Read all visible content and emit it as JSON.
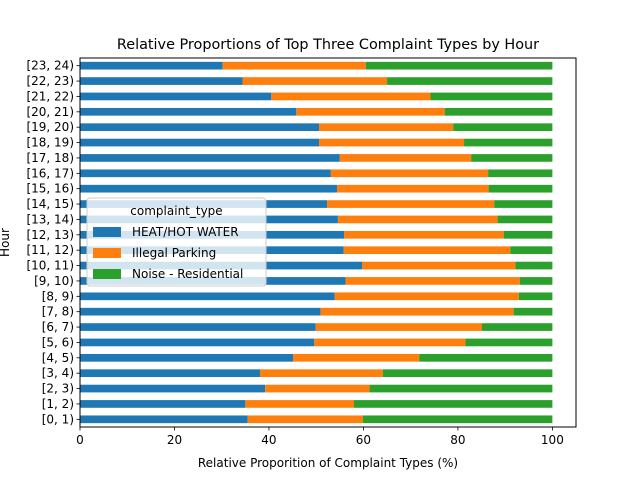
{
  "chart_data": {
    "type": "bar",
    "orientation": "horizontal",
    "stacked": true,
    "title": "Relative Proportions of Top Three Complaint Types by Hour",
    "xlabel": "Relative Proporition of Complaint Types (%)",
    "ylabel": "Hour",
    "xlim": [
      0,
      105
    ],
    "xticks": [
      0,
      20,
      40,
      60,
      80,
      100
    ],
    "grid": false,
    "categories": [
      "[0, 1)",
      "[1, 2)",
      "[2, 3)",
      "[3, 4)",
      "[4, 5)",
      "[5, 6)",
      "[6, 7)",
      "[7, 8)",
      "[8, 9)",
      "[9, 10)",
      "[10, 11)",
      "[11, 12)",
      "[12, 13)",
      "[13, 14)",
      "[14, 15)",
      "[15, 16)",
      "[16, 17)",
      "[17, 18)",
      "[18, 19)",
      "[19, 20)",
      "[20, 21)",
      "[21, 22)",
      "[22, 23)",
      "[23, 24)"
    ],
    "legend": {
      "title": "complaint_type",
      "placement": "center-left"
    },
    "series": [
      {
        "name": "HEAT/HOT WATER",
        "color": "#1f77b4",
        "values": [
          35.5,
          35.0,
          39.2,
          38.1,
          45.1,
          49.6,
          49.9,
          50.9,
          53.9,
          56.2,
          59.7,
          55.8,
          55.9,
          54.6,
          52.3,
          54.4,
          53.1,
          55.0,
          50.6,
          50.6,
          45.8,
          40.5,
          34.4,
          30.2
        ]
      },
      {
        "name": "Illegal Parking",
        "color": "#ff7f0e",
        "values": [
          24.4,
          23.0,
          22.1,
          26.0,
          26.7,
          32.0,
          35.2,
          40.9,
          39.0,
          36.9,
          32.5,
          35.3,
          33.8,
          33.8,
          35.4,
          32.1,
          33.3,
          27.8,
          30.7,
          28.4,
          31.4,
          33.7,
          30.6,
          30.3
        ]
      },
      {
        "name": "Noise - Residential",
        "color": "#2ca02c",
        "values": [
          40.1,
          42.0,
          38.7,
          35.9,
          28.2,
          18.4,
          14.9,
          8.2,
          7.1,
          6.9,
          7.8,
          8.9,
          10.3,
          11.6,
          12.3,
          13.5,
          13.6,
          17.2,
          18.7,
          21.0,
          22.8,
          25.8,
          35.0,
          39.5
        ]
      }
    ]
  }
}
